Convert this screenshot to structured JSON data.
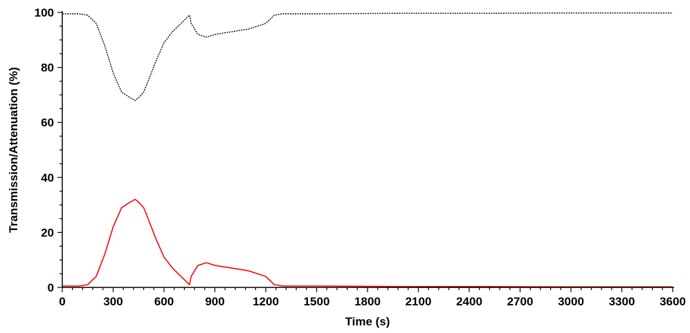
{
  "chart_data": {
    "type": "line",
    "title": "",
    "xlabel": "Time (s)",
    "ylabel": "Transmission/Attenuation (%)",
    "xlim": [
      0,
      3600
    ],
    "ylim": [
      0,
      100
    ],
    "x_ticks": [
      0,
      300,
      600,
      900,
      1200,
      1500,
      1800,
      2100,
      2400,
      2700,
      3000,
      3300,
      3600
    ],
    "y_ticks": [
      0,
      20,
      40,
      60,
      80,
      100
    ],
    "grid": false,
    "legend": "none",
    "series": [
      {
        "color": "#000000",
        "style": "dotted",
        "x": [
          0,
          100,
          150,
          200,
          250,
          300,
          350,
          400,
          430,
          450,
          480,
          500,
          550,
          600,
          650,
          700,
          750,
          760,
          780,
          800,
          850,
          900,
          1000,
          1100,
          1200,
          1250,
          1300,
          1500,
          2000,
          2500,
          3000,
          3600
        ],
        "y": [
          99.5,
          99.5,
          99,
          96,
          88,
          78,
          71,
          69,
          68,
          69,
          71,
          74,
          82,
          89,
          93,
          96,
          99,
          96,
          94,
          92,
          91,
          92,
          93,
          94,
          96,
          99,
          99.5,
          99.5,
          99.7,
          99.7,
          99.8,
          99.8
        ]
      },
      {
        "color": "#ff0000",
        "style": "solid",
        "x": [
          0,
          100,
          150,
          200,
          250,
          300,
          350,
          400,
          430,
          450,
          480,
          500,
          550,
          600,
          650,
          700,
          750,
          760,
          780,
          800,
          850,
          900,
          1000,
          1100,
          1200,
          1250,
          1300,
          1500,
          2000,
          2500,
          3000,
          3600
        ],
        "y": [
          0.5,
          0.5,
          1,
          4,
          12,
          22,
          29,
          31,
          32,
          31,
          29,
          26,
          18,
          11,
          7,
          4,
          1,
          4,
          6,
          8,
          9,
          8,
          7,
          6,
          4,
          1,
          0.5,
          0.5,
          0.3,
          0.3,
          0.2,
          0.2
        ]
      }
    ]
  }
}
